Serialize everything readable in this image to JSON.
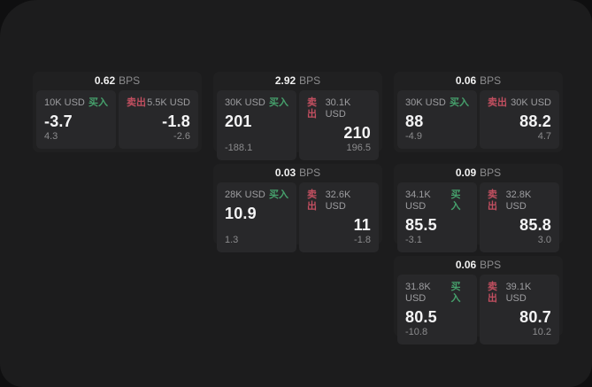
{
  "labels": {
    "bps_unit": "BPS",
    "buy": "买入",
    "sell": "卖出"
  },
  "colors": {
    "page_background": "#0f0f10",
    "panel_background": "#1c1c1d",
    "card_background": "#202021",
    "subpanel_background": "#28282a",
    "buy_accent": "#46a06c",
    "sell_accent": "#c24f60",
    "primary_text": "#f4f4f5",
    "muted_text": "#9d9da0"
  },
  "cards": [
    {
      "bps": "0.62",
      "buy": {
        "amount": "10K USD",
        "price": "-3.7",
        "delta": "4.3"
      },
      "sell": {
        "amount": "5.5K USD",
        "price": "-1.8",
        "delta": "-2.6"
      }
    },
    {
      "bps": "2.92",
      "buy": {
        "amount": "30K USD",
        "price": "201",
        "delta": "-188.1"
      },
      "sell": {
        "amount": "30.1K USD",
        "price": "210",
        "delta": "196.5"
      }
    },
    {
      "bps": "0.06",
      "buy": {
        "amount": "30K USD",
        "price": "88",
        "delta": "-4.9"
      },
      "sell": {
        "amount": "30K USD",
        "price": "88.2",
        "delta": "4.7"
      }
    },
    {
      "bps": "0.03",
      "buy": {
        "amount": "28K USD",
        "price": "10.9",
        "delta": "1.3"
      },
      "sell": {
        "amount": "32.6K USD",
        "price": "11",
        "delta": "-1.8"
      }
    },
    {
      "bps": "0.09",
      "buy": {
        "amount": "34.1K USD",
        "price": "85.5",
        "delta": "-3.1"
      },
      "sell": {
        "amount": "32.8K USD",
        "price": "85.8",
        "delta": "3.0"
      }
    },
    {
      "bps": "0.06",
      "buy": {
        "amount": "31.8K USD",
        "price": "80.5",
        "delta": "-10.8"
      },
      "sell": {
        "amount": "39.1K USD",
        "price": "80.7",
        "delta": "10.2"
      }
    }
  ]
}
